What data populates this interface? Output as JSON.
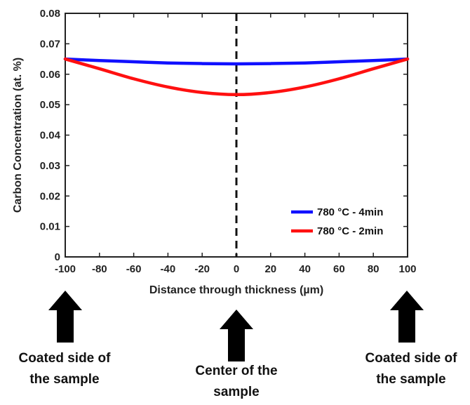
{
  "chart_data": {
    "type": "line",
    "title": "",
    "xlabel": "Distance through thickness (µm)",
    "ylabel": "Carbon Concentration  (at. %)",
    "xlim": [
      -100,
      100
    ],
    "ylim": [
      0,
      0.08
    ],
    "xticks": [
      "-100",
      "-80",
      "-60",
      "-40",
      "-20",
      "0",
      "20",
      "40",
      "60",
      "80",
      "100"
    ],
    "yticks": [
      "0",
      "0.01",
      "0.02",
      "0.03",
      "0.04",
      "0.05",
      "0.06",
      "0.07",
      "0.08"
    ],
    "grid": false,
    "legend_position": "bottom-right",
    "series": [
      {
        "name": "780 °C - 4min",
        "color": "#1010ff",
        "x": [
          -100,
          -80,
          -60,
          -40,
          -20,
          0,
          20,
          40,
          60,
          80,
          100
        ],
        "y": [
          0.065,
          0.0645,
          0.0641,
          0.0637,
          0.0635,
          0.0634,
          0.0635,
          0.0637,
          0.0641,
          0.0645,
          0.065
        ]
      },
      {
        "name": "780 °C - 2min",
        "color": "#ff1010",
        "x": [
          -100,
          -80,
          -60,
          -40,
          -20,
          0,
          20,
          40,
          60,
          80,
          100
        ],
        "y": [
          0.065,
          0.0618,
          0.0585,
          0.0558,
          0.054,
          0.0533,
          0.054,
          0.0558,
          0.0585,
          0.0618,
          0.065
        ]
      }
    ],
    "center_line_x": 0,
    "annotations": [
      {
        "lines": [
          "Coated side of",
          "the sample"
        ],
        "x": -100
      },
      {
        "lines": [
          "Center of the",
          "sample"
        ],
        "x": 0
      },
      {
        "lines": [
          "Coated side of",
          "the sample"
        ],
        "x": 100
      }
    ]
  }
}
